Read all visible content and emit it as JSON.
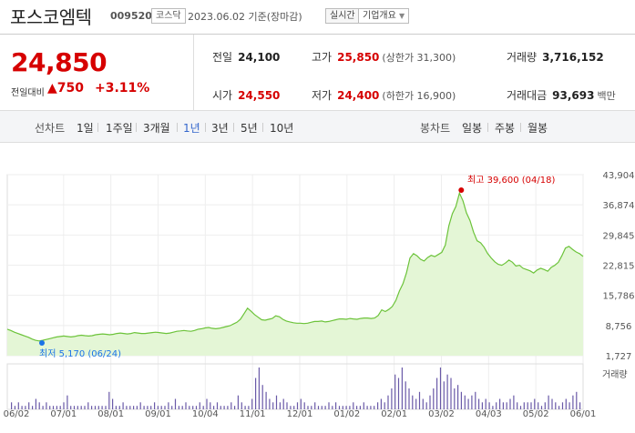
{
  "header": {
    "name": "포스코엠텍",
    "code": "009520",
    "market": "코스닥",
    "date": "2023.06.02 기준(장마감)",
    "realtime": "실시간",
    "company_info": "기업개요",
    "company_caret": "▼"
  },
  "summary": {
    "price": "24,850",
    "change_label": "전일대비",
    "change_value": "▲750",
    "change_percent": "+3.11%",
    "prev_close_label": "전일",
    "prev_close": "24,100",
    "high_label": "고가",
    "high": "25,850",
    "upper_limit": "(상한가 31,300)",
    "volume_label": "거래량",
    "volume": "3,716,152",
    "open_label": "시가",
    "open": "24,550",
    "low_label": "저가",
    "low": "24,400",
    "lower_limit": "(하한가 16,900)",
    "amount_label": "거래대금",
    "amount": "93,693",
    "amount_unit": "백만"
  },
  "tabs": {
    "line_label": "선차트",
    "line_tabs": [
      "1일",
      "1주일",
      "3개월",
      "1년",
      "3년",
      "5년",
      "10년"
    ],
    "active": "1년",
    "candle_label": "봉차트",
    "candle_tabs": [
      "일봉",
      "주봉",
      "월봉"
    ]
  },
  "colors": {
    "up": "#d60000",
    "line": "#6cc33a",
    "fill": "#e4f6d6",
    "volume": "#6a5aa8",
    "active_tab": "#3366cc",
    "high_marker": "#d60000",
    "low_marker": "#1a73e8"
  },
  "chart_data": {
    "type": "area",
    "title": "",
    "y_ticks": [
      43904,
      36874,
      29845,
      22815,
      15786,
      8756,
      1727
    ],
    "y_tick_labels": [
      "43,904",
      "36,874",
      "29,845",
      "22,815",
      "15,786",
      "8,756",
      "1,727"
    ],
    "ylim": [
      1727,
      43904
    ],
    "x_tick_labels": [
      "06/02",
      "07/01",
      "08/01",
      "09/01",
      "10/04",
      "11/01",
      "12/01",
      "01/02",
      "02/01",
      "03/02",
      "04/03",
      "05/02",
      "06/01"
    ],
    "high_annotation": "최고 39,600 (04/18)",
    "low_annotation": "최저 5,170 (06/24)",
    "high_value": 39600,
    "low_value": 5170,
    "volume_legend": "거래량",
    "series": [
      {
        "values": [
          7900,
          7600,
          7200,
          6900,
          6600,
          6300,
          6000,
          5600,
          5300,
          5170,
          5300,
          5500,
          5700,
          5900,
          6100,
          6200,
          6300,
          6200,
          6100,
          6200,
          6400,
          6500,
          6400,
          6300,
          6400,
          6600,
          6700,
          6800,
          6700,
          6600,
          6700,
          6900,
          7000,
          6900,
          6800,
          6900,
          7100,
          7000,
          6900,
          6900,
          7000,
          7100,
          7200,
          7100,
          7000,
          6900,
          7000,
          7200,
          7400,
          7500,
          7600,
          7500,
          7400,
          7600,
          7900,
          8000,
          8200,
          8300,
          8100,
          8000,
          8100,
          8300,
          8500,
          8700,
          9100,
          9500,
          10200,
          11500,
          12800,
          12100,
          11300,
          10700,
          10100,
          10000,
          10200,
          10400,
          11000,
          10800,
          10200,
          9800,
          9600,
          9400,
          9300,
          9300,
          9200,
          9300,
          9500,
          9700,
          9700,
          9800,
          9600,
          9700,
          9900,
          10100,
          10300,
          10300,
          10200,
          10400,
          10300,
          10200,
          10400,
          10500,
          10500,
          10400,
          10500,
          11100,
          12400,
          12000,
          12500,
          13200,
          14600,
          16800,
          18500,
          21000,
          24500,
          25500,
          25000,
          24200,
          23800,
          24600,
          25100,
          24800,
          25300,
          25800,
          27500,
          32000,
          34800,
          36500,
          39600,
          37800,
          35000,
          33200,
          30500,
          28500,
          28000,
          27000,
          25500,
          24500,
          23600,
          23000,
          22800,
          23300,
          24000,
          23500,
          22600,
          22800,
          22100,
          21800,
          21500,
          21000,
          21700,
          22100,
          21800,
          21400,
          22300,
          22800,
          23500,
          25000,
          26800,
          27200,
          26500,
          25900,
          25500,
          24850
        ]
      }
    ],
    "volume_values": [
      2,
      1,
      2,
      1,
      1,
      2,
      1,
      3,
      2,
      1,
      2,
      1,
      1,
      1,
      1,
      2,
      4,
      1,
      1,
      1,
      1,
      1,
      2,
      1,
      1,
      1,
      1,
      1,
      5,
      3,
      1,
      1,
      2,
      1,
      1,
      1,
      1,
      2,
      1,
      1,
      1,
      2,
      1,
      1,
      1,
      2,
      1,
      3,
      1,
      1,
      2,
      1,
      1,
      1,
      2,
      1,
      3,
      2,
      1,
      2,
      1,
      1,
      1,
      2,
      1,
      4,
      2,
      1,
      1,
      3,
      9,
      12,
      7,
      5,
      3,
      2,
      4,
      2,
      3,
      2,
      1,
      1,
      2,
      3,
      2,
      1,
      1,
      2,
      1,
      1,
      1,
      2,
      1,
      2,
      1,
      1,
      1,
      1,
      2,
      1,
      1,
      2,
      1,
      1,
      1,
      2,
      3,
      2,
      4,
      6,
      10,
      9,
      12,
      8,
      6,
      4,
      3,
      5,
      3,
      2,
      4,
      6,
      9,
      12,
      8,
      10,
      9,
      6,
      7,
      5,
      4,
      3,
      4,
      5,
      3,
      2,
      3,
      2,
      1,
      2,
      3,
      2,
      2,
      3,
      4,
      2,
      1,
      2,
      2,
      2,
      3,
      2,
      1,
      2,
      4,
      3,
      2,
      1,
      2,
      3,
      2,
      4,
      5,
      2
    ]
  }
}
